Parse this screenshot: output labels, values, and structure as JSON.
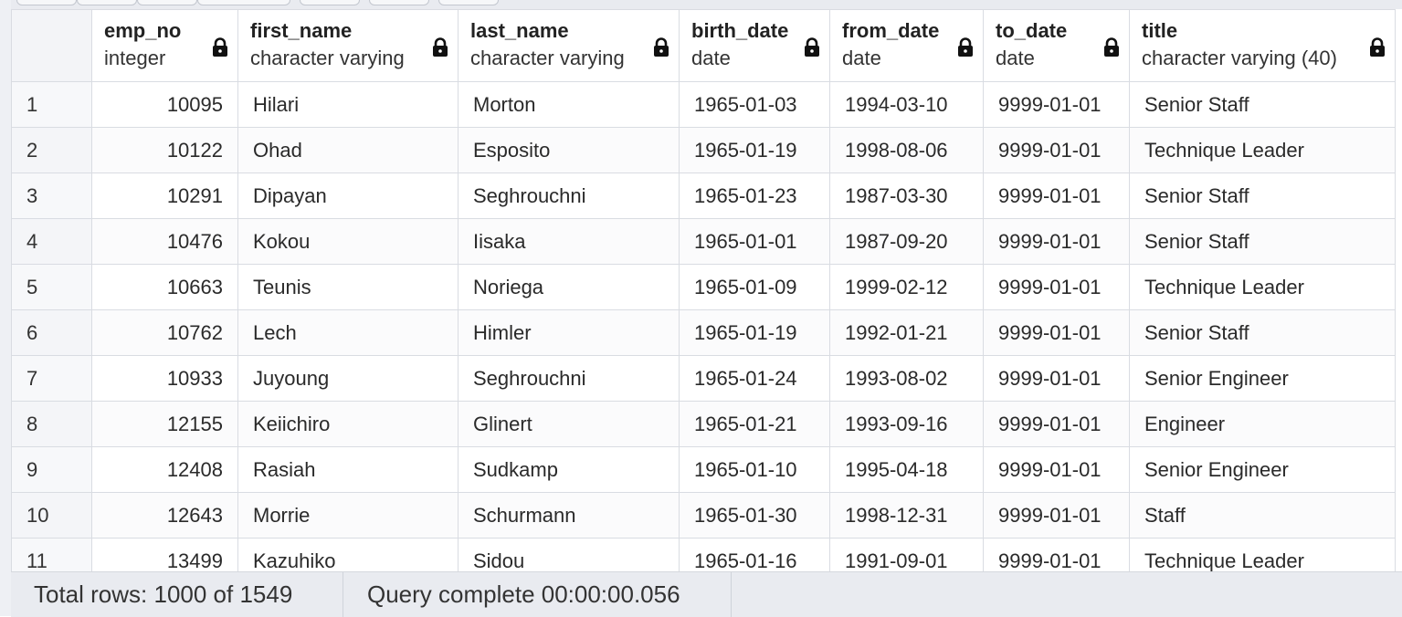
{
  "grid": {
    "columns": [
      {
        "name": "emp_no",
        "type": "integer"
      },
      {
        "name": "first_name",
        "type": "character varying"
      },
      {
        "name": "last_name",
        "type": "character varying"
      },
      {
        "name": "birth_date",
        "type": "date"
      },
      {
        "name": "from_date",
        "type": "date"
      },
      {
        "name": "to_date",
        "type": "date"
      },
      {
        "name": "title",
        "type": "character varying (40)"
      }
    ],
    "rows": [
      {
        "n": "1",
        "emp_no": "10095",
        "first_name": "Hilari",
        "last_name": "Morton",
        "birth_date": "1965-01-03",
        "from_date": "1994-03-10",
        "to_date": "9999-01-01",
        "title": "Senior Staff"
      },
      {
        "n": "2",
        "emp_no": "10122",
        "first_name": "Ohad",
        "last_name": "Esposito",
        "birth_date": "1965-01-19",
        "from_date": "1998-08-06",
        "to_date": "9999-01-01",
        "title": "Technique Leader"
      },
      {
        "n": "3",
        "emp_no": "10291",
        "first_name": "Dipayan",
        "last_name": "Seghrouchni",
        "birth_date": "1965-01-23",
        "from_date": "1987-03-30",
        "to_date": "9999-01-01",
        "title": "Senior Staff"
      },
      {
        "n": "4",
        "emp_no": "10476",
        "first_name": "Kokou",
        "last_name": "Iisaka",
        "birth_date": "1965-01-01",
        "from_date": "1987-09-20",
        "to_date": "9999-01-01",
        "title": "Senior Staff"
      },
      {
        "n": "5",
        "emp_no": "10663",
        "first_name": "Teunis",
        "last_name": "Noriega",
        "birth_date": "1965-01-09",
        "from_date": "1999-02-12",
        "to_date": "9999-01-01",
        "title": "Technique Leader"
      },
      {
        "n": "6",
        "emp_no": "10762",
        "first_name": "Lech",
        "last_name": "Himler",
        "birth_date": "1965-01-19",
        "from_date": "1992-01-21",
        "to_date": "9999-01-01",
        "title": "Senior Staff"
      },
      {
        "n": "7",
        "emp_no": "10933",
        "first_name": "Juyoung",
        "last_name": "Seghrouchni",
        "birth_date": "1965-01-24",
        "from_date": "1993-08-02",
        "to_date": "9999-01-01",
        "title": "Senior Engineer"
      },
      {
        "n": "8",
        "emp_no": "12155",
        "first_name": "Keiichiro",
        "last_name": "Glinert",
        "birth_date": "1965-01-21",
        "from_date": "1993-09-16",
        "to_date": "9999-01-01",
        "title": "Engineer"
      },
      {
        "n": "9",
        "emp_no": "12408",
        "first_name": "Rasiah",
        "last_name": "Sudkamp",
        "birth_date": "1965-01-10",
        "from_date": "1995-04-18",
        "to_date": "9999-01-01",
        "title": "Senior Engineer"
      },
      {
        "n": "10",
        "emp_no": "12643",
        "first_name": "Morrie",
        "last_name": "Schurmann",
        "birth_date": "1965-01-30",
        "from_date": "1998-12-31",
        "to_date": "9999-01-01",
        "title": "Staff"
      },
      {
        "n": "11",
        "emp_no": "13499",
        "first_name": "Kazuhiko",
        "last_name": "Sidou",
        "birth_date": "1965-01-16",
        "from_date": "1991-09-01",
        "to_date": "9999-01-01",
        "title": "Technique Leader"
      }
    ],
    "lock_icon": "lock-icon"
  },
  "status": {
    "total_rows": "Total rows: 1000 of 1549",
    "query_complete": "Query complete 00:00:00.056"
  }
}
